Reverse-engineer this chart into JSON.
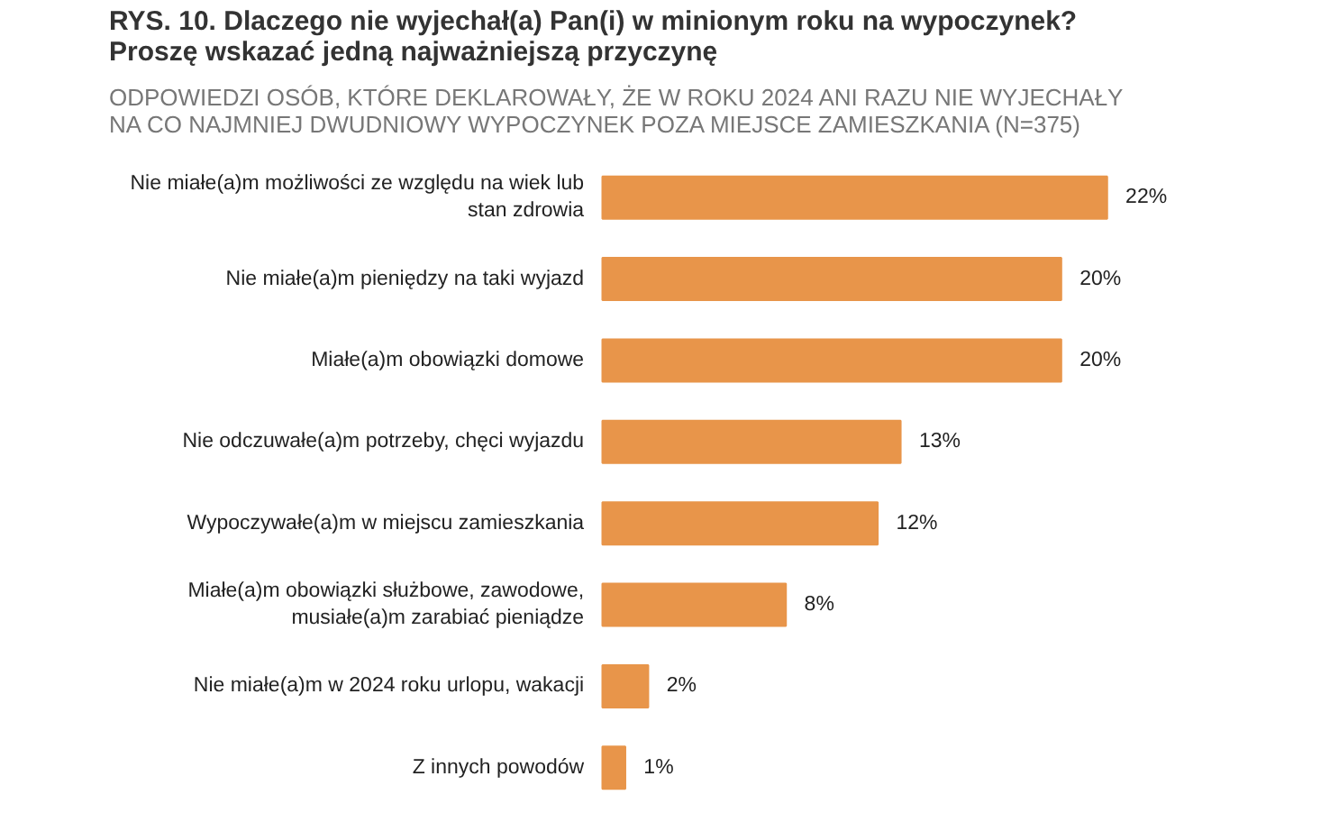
{
  "chart_data": {
    "type": "bar",
    "orientation": "horizontal",
    "title": "RYS. 10. Dlaczego nie wyjechał(a) Pan(i) w minionym roku na wypoczynek?\nProszę wskazać jedną najważniejszą przyczynę",
    "subtitle": "ODPOWIEDZI OSÓB, KTÓRE DEKLAROWAŁY, ŻE W ROKU 2024 ANI RAZU NIE WYJECHAŁY\nNA CO NAJMNIEJ DWUDNIOWY WYPOCZYNEK POZA MIEJSCE ZAMIESZKANIA (N=375)",
    "categories": [
      "Nie miałe(a)m możliwości ze względu na wiek lub\nstan zdrowia",
      "Nie miałe(a)m pieniędzy na taki wyjazd",
      "Miałe(a)m obowiązki domowe",
      "Nie odczuwałe(a)m potrzeby, chęci wyjazdu",
      "Wypoczywałe(a)m w miejscu zamieszkania",
      "Miałe(a)m obowiązki służbowe, zawodowe,\nmusiałe(a)m zarabiać pieniądze",
      "Nie miałe(a)m w 2024 roku urlopu, wakacji",
      "Z innych powodów"
    ],
    "values": [
      22,
      20,
      20,
      13,
      12,
      8,
      2,
      1
    ],
    "color": "#e8954a",
    "data_labels": true,
    "value_labels": [
      "22%",
      "20%",
      "20%",
      "13%",
      "12%",
      "8%",
      "2%",
      "1%"
    ]
  }
}
